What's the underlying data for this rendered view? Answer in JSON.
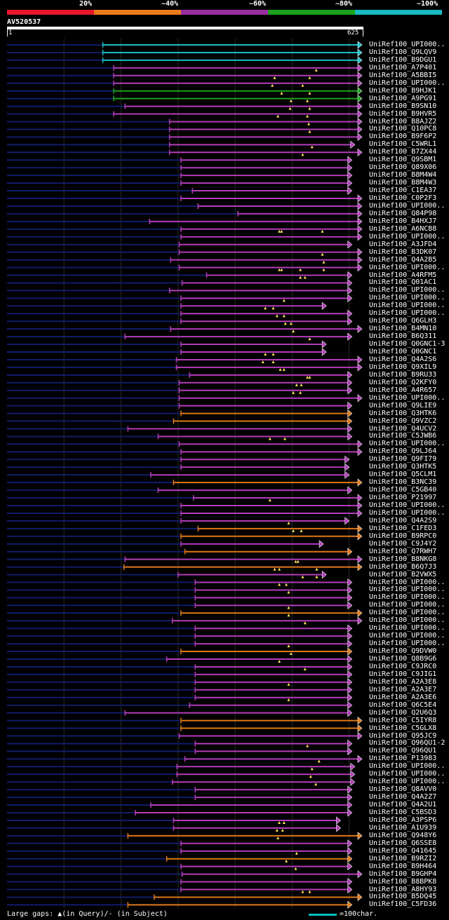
{
  "legend": {
    "labels": [
      "20%",
      "~40%",
      "~60%",
      "~80%",
      "~100%"
    ],
    "colors": [
      "#e8172c",
      "#ec7b1c",
      "#9a2ea1",
      "#1aa31a",
      "#18b9c2"
    ]
  },
  "query": {
    "name": "AV520537",
    "start": "1",
    "end": "625",
    "length": 625
  },
  "colors": {
    "cyan": "#19c0c8",
    "green": "#1aa31a",
    "magenta": "#b43cba",
    "orange": "#e07818",
    "background": "#000000",
    "queryline": "#101d6a"
  },
  "hits": [
    {
      "name": "UniRef100_UPI000..",
      "start": 168,
      "end": 655,
      "color": "cyan",
      "gaps": []
    },
    {
      "name": "UniRef100_Q9LQV9",
      "start": 168,
      "end": 655,
      "color": "cyan",
      "gaps": []
    },
    {
      "name": "UniRef100_B9DGU1",
      "start": 168,
      "end": 655,
      "color": "cyan",
      "gaps": []
    },
    {
      "name": "UniRef100_A7P401",
      "start": 187,
      "end": 655,
      "color": "magenta",
      "gaps": [
        604
      ]
    },
    {
      "name": "UniRef100_A5BBI5",
      "start": 187,
      "end": 625,
      "color": "magenta",
      "gaps": [
        515,
        590
      ]
    },
    {
      "name": "UniRef100_UPI000..",
      "start": 187,
      "end": 625,
      "color": "magenta",
      "gaps": [
        510,
        575
      ]
    },
    {
      "name": "UniRef100_B9HJK1",
      "start": 187,
      "end": 625,
      "color": "green",
      "gaps": [
        530,
        590
      ]
    },
    {
      "name": "UniRef100_A9PG91",
      "start": 187,
      "end": 625,
      "color": "green",
      "gaps": [
        550,
        585
      ]
    },
    {
      "name": "UniRef100_B9SN10",
      "start": 207,
      "end": 625,
      "color": "magenta",
      "gaps": [
        548,
        590
      ]
    },
    {
      "name": "UniRef100_B9HVR5",
      "start": 187,
      "end": 625,
      "color": "magenta",
      "gaps": [
        522,
        585
      ]
    },
    {
      "name": "UniRef100_B8AJZ2",
      "start": 285,
      "end": 630,
      "color": "magenta",
      "gaps": [
        588
      ]
    },
    {
      "name": "UniRef100_Q10PC8",
      "start": 285,
      "end": 630,
      "color": "magenta",
      "gaps": [
        590
      ]
    },
    {
      "name": "UniRef100_B9F6P2",
      "start": 285,
      "end": 630,
      "color": "magenta",
      "gaps": []
    },
    {
      "name": "UniRef100_C5WRL1",
      "start": 285,
      "end": 610,
      "color": "magenta",
      "gaps": [
        595
      ]
    },
    {
      "name": "UniRef100_B7ZX44",
      "start": 285,
      "end": 630,
      "color": "magenta",
      "gaps": [
        575
      ]
    },
    {
      "name": "UniRef100_Q9SBM1",
      "start": 305,
      "end": 605,
      "color": "magenta",
      "gaps": []
    },
    {
      "name": "UniRef100_Q89X06",
      "start": 305,
      "end": 605,
      "color": "magenta",
      "gaps": []
    },
    {
      "name": "UniRef100_B8M4W4",
      "start": 305,
      "end": 605,
      "color": "magenta",
      "gaps": []
    },
    {
      "name": "UniRef100_B8M4W3",
      "start": 305,
      "end": 605,
      "color": "magenta",
      "gaps": []
    },
    {
      "name": "UniRef100_C1EA37",
      "start": 325,
      "end": 605,
      "color": "magenta",
      "gaps": []
    },
    {
      "name": "UniRef100_C0P2F3",
      "start": 305,
      "end": 630,
      "color": "magenta",
      "gaps": []
    },
    {
      "name": "UniRef100_UPI000..",
      "start": 335,
      "end": 630,
      "color": "magenta",
      "gaps": []
    },
    {
      "name": "UniRef100_Q84P98",
      "start": 405,
      "end": 630,
      "color": "magenta",
      "gaps": []
    },
    {
      "name": "UniRef100_B4HXJ7",
      "start": 250,
      "end": 630,
      "color": "magenta",
      "gaps": []
    },
    {
      "name": "UniRef100_A6NCB8",
      "start": 305,
      "end": 630,
      "color": "magenta",
      "gaps": [
        525,
        530,
        617
      ]
    },
    {
      "name": "UniRef100_UPI000..",
      "start": 305,
      "end": 630,
      "color": "magenta",
      "gaps": []
    },
    {
      "name": "UniRef100_A3JFD4",
      "start": 302,
      "end": 605,
      "color": "magenta",
      "gaps": []
    },
    {
      "name": "UniRef100_B3DK07",
      "start": 302,
      "end": 630,
      "color": "magenta",
      "gaps": [
        617
      ]
    },
    {
      "name": "UniRef100_Q4A2B5",
      "start": 287,
      "end": 630,
      "color": "magenta",
      "gaps": [
        620
      ]
    },
    {
      "name": "UniRef100_UPI000..",
      "start": 302,
      "end": 625,
      "color": "magenta",
      "gaps": [
        525,
        530,
        570,
        620
      ]
    },
    {
      "name": "UniRef100_A4RFM5",
      "start": 350,
      "end": 605,
      "color": "magenta",
      "gaps": [
        570,
        580
      ]
    },
    {
      "name": "UniRef100_Q01AC1",
      "start": 307,
      "end": 605,
      "color": "magenta",
      "gaps": []
    },
    {
      "name": "UniRef100_UPI000..",
      "start": 285,
      "end": 605,
      "color": "magenta",
      "gaps": []
    },
    {
      "name": "UniRef100_UPI000..",
      "start": 305,
      "end": 605,
      "color": "magenta",
      "gaps": [
        535
      ]
    },
    {
      "name": "UniRef100_UPI000..",
      "start": 305,
      "end": 560,
      "color": "magenta",
      "gaps": [
        495,
        512
      ]
    },
    {
      "name": "UniRef100_UPI000..",
      "start": 305,
      "end": 605,
      "color": "magenta",
      "gaps": [
        520,
        535
      ]
    },
    {
      "name": "UniRef100_Q6GLH3",
      "start": 305,
      "end": 605,
      "color": "magenta",
      "gaps": [
        538,
        550
      ]
    },
    {
      "name": "UniRef100_B4MN10",
      "start": 287,
      "end": 625,
      "color": "magenta",
      "gaps": [
        555
      ]
    },
    {
      "name": "UniRef100_B6Q311",
      "start": 207,
      "end": 605,
      "color": "magenta",
      "gaps": [
        590
      ]
    },
    {
      "name": "UniRef100_Q0GNC1-3",
      "start": 305,
      "end": 560,
      "color": "magenta",
      "gaps": []
    },
    {
      "name": "UniRef100_Q0GNC1",
      "start": 305,
      "end": 560,
      "color": "magenta",
      "gaps": [
        495,
        512
      ]
    },
    {
      "name": "UniRef100_Q4A2S6",
      "start": 297,
      "end": 625,
      "color": "magenta",
      "gaps": [
        490,
        512
      ]
    },
    {
      "name": "UniRef100_Q9XIL9",
      "start": 297,
      "end": 625,
      "color": "magenta",
      "gaps": [
        527,
        535
      ]
    },
    {
      "name": "UniRef100_B9RU33",
      "start": 320,
      "end": 605,
      "color": "magenta",
      "gaps": [
        585,
        590
      ]
    },
    {
      "name": "UniRef100_Q2KFY0",
      "start": 302,
      "end": 605,
      "color": "magenta",
      "gaps": [
        562,
        572
      ]
    },
    {
      "name": "UniRef100_A4R657",
      "start": 302,
      "end": 605,
      "color": "magenta",
      "gaps": [
        555,
        570
      ]
    },
    {
      "name": "UniRef100_UPI000..",
      "start": 302,
      "end": 630,
      "color": "magenta",
      "gaps": []
    },
    {
      "name": "UniRef100_Q9LIE9",
      "start": 302,
      "end": 605,
      "color": "magenta",
      "gaps": []
    },
    {
      "name": "UniRef100_Q3HTK6",
      "start": 305,
      "end": 605,
      "color": "orange",
      "gaps": []
    },
    {
      "name": "UniRef100_Q9VZC2",
      "start": 292,
      "end": 605,
      "color": "orange",
      "gaps": []
    },
    {
      "name": "UniRef100_Q4UCV2",
      "start": 212,
      "end": 605,
      "color": "magenta",
      "gaps": []
    },
    {
      "name": "UniRef100_C5JWB6",
      "start": 265,
      "end": 605,
      "color": "magenta",
      "gaps": [
        505,
        537
      ]
    },
    {
      "name": "UniRef100_UPI000..",
      "start": 302,
      "end": 630,
      "color": "magenta",
      "gaps": []
    },
    {
      "name": "UniRef100_Q9LJ64",
      "start": 305,
      "end": 630,
      "color": "magenta",
      "gaps": []
    },
    {
      "name": "UniRef100_Q9FI79",
      "start": 305,
      "end": 600,
      "color": "magenta",
      "gaps": []
    },
    {
      "name": "UniRef100_Q3HTK5",
      "start": 305,
      "end": 600,
      "color": "magenta",
      "gaps": []
    },
    {
      "name": "UniRef100_Q5CLM1",
      "start": 252,
      "end": 600,
      "color": "magenta",
      "gaps": []
    },
    {
      "name": "UniRef100_B3NC39",
      "start": 292,
      "end": 630,
      "color": "orange",
      "gaps": []
    },
    {
      "name": "UniRef100_C5GB40",
      "start": 265,
      "end": 605,
      "color": "magenta",
      "gaps": []
    },
    {
      "name": "UniRef100_P21997",
      "start": 327,
      "end": 635,
      "color": "magenta",
      "gaps": [
        505
      ]
    },
    {
      "name": "UniRef100_UPI000..",
      "start": 305,
      "end": 630,
      "color": "magenta",
      "gaps": []
    },
    {
      "name": "UniRef100_UPI000..",
      "start": 305,
      "end": 630,
      "color": "magenta",
      "gaps": []
    },
    {
      "name": "UniRef100_Q4A2S9",
      "start": 305,
      "end": 600,
      "color": "magenta",
      "gaps": [
        545
      ]
    },
    {
      "name": "UniRef100_C1FED3",
      "start": 335,
      "end": 630,
      "color": "orange",
      "gaps": [
        555,
        572
      ]
    },
    {
      "name": "UniRef100_B9RPC0",
      "start": 305,
      "end": 630,
      "color": "orange",
      "gaps": []
    },
    {
      "name": "UniRef100_C9J4Y2",
      "start": 305,
      "end": 555,
      "color": "magenta",
      "gaps": []
    },
    {
      "name": "UniRef100_Q7RWH7",
      "start": 312,
      "end": 605,
      "color": "orange",
      "gaps": []
    },
    {
      "name": "UniRef100_B8NKG8",
      "start": 207,
      "end": 625,
      "color": "magenta",
      "gaps": [
        560,
        565
      ]
    },
    {
      "name": "UniRef100_B6Q7J3",
      "start": 205,
      "end": 625,
      "color": "orange",
      "gaps": [
        515,
        525,
        605
      ]
    },
    {
      "name": "UniRef100_B2VWX5",
      "start": 300,
      "end": 560,
      "color": "magenta",
      "gaps": [
        575,
        605
      ]
    },
    {
      "name": "UniRef100_UPI000..",
      "start": 330,
      "end": 605,
      "color": "magenta",
      "gaps": [
        525,
        540
      ]
    },
    {
      "name": "UniRef100_UPI000..",
      "start": 330,
      "end": 605,
      "color": "magenta",
      "gaps": [
        545
      ]
    },
    {
      "name": "UniRef100_UPI000..",
      "start": 330,
      "end": 605,
      "color": "magenta",
      "gaps": []
    },
    {
      "name": "UniRef100_UPI000..",
      "start": 330,
      "end": 605,
      "color": "magenta",
      "gaps": [
        545
      ]
    },
    {
      "name": "UniRef100_UPI000..",
      "start": 305,
      "end": 625,
      "color": "orange",
      "gaps": [
        545
      ]
    },
    {
      "name": "UniRef100_UPI000..",
      "start": 290,
      "end": 630,
      "color": "magenta",
      "gaps": [
        580
      ]
    },
    {
      "name": "UniRef100_UPI000..",
      "start": 330,
      "end": 605,
      "color": "magenta",
      "gaps": []
    },
    {
      "name": "UniRef100_UPI000..",
      "start": 330,
      "end": 605,
      "color": "magenta",
      "gaps": []
    },
    {
      "name": "UniRef100_UPI000..",
      "start": 330,
      "end": 605,
      "color": "magenta",
      "gaps": [
        545
      ]
    },
    {
      "name": "UniRef100_Q9DVW0",
      "start": 305,
      "end": 605,
      "color": "orange",
      "gaps": [
        550
      ]
    },
    {
      "name": "UniRef100_Q8B9G6",
      "start": 280,
      "end": 605,
      "color": "magenta",
      "gaps": [
        525
      ]
    },
    {
      "name": "UniRef100_C9JRC0",
      "start": 330,
      "end": 605,
      "color": "magenta",
      "gaps": [
        580
      ]
    },
    {
      "name": "UniRef100_C9JIG1",
      "start": 330,
      "end": 605,
      "color": "magenta",
      "gaps": []
    },
    {
      "name": "UniRef100_A2A3E8",
      "start": 330,
      "end": 605,
      "color": "magenta",
      "gaps": [
        545
      ]
    },
    {
      "name": "UniRef100_A2A3E7",
      "start": 330,
      "end": 605,
      "color": "magenta",
      "gaps": []
    },
    {
      "name": "UniRef100_A2A3E6",
      "start": 330,
      "end": 605,
      "color": "magenta",
      "gaps": [
        545
      ]
    },
    {
      "name": "UniRef100_Q6C5E4",
      "start": 320,
      "end": 605,
      "color": "magenta",
      "gaps": []
    },
    {
      "name": "UniRef100_Q2U6Q3",
      "start": 207,
      "end": 605,
      "color": "magenta",
      "gaps": []
    },
    {
      "name": "UniRef100_C5IYR8",
      "start": 305,
      "end": 635,
      "color": "orange",
      "gaps": []
    },
    {
      "name": "UniRef100_C5GLX8",
      "start": 305,
      "end": 635,
      "color": "orange",
      "gaps": []
    },
    {
      "name": "UniRef100_Q95JC9",
      "start": 302,
      "end": 630,
      "color": "magenta",
      "gaps": []
    },
    {
      "name": "UniRef100_Q96QU1-2",
      "start": 330,
      "end": 605,
      "color": "magenta",
      "gaps": [
        585
      ]
    },
    {
      "name": "UniRef100_Q96QU1",
      "start": 330,
      "end": 605,
      "color": "magenta",
      "gaps": []
    },
    {
      "name": "UniRef100_P13983",
      "start": 312,
      "end": 625,
      "color": "magenta",
      "gaps": [
        610
      ]
    },
    {
      "name": "UniRef100_UPI000..",
      "start": 298,
      "end": 610,
      "color": "magenta",
      "gaps": [
        595
      ]
    },
    {
      "name": "UniRef100_UPI000..",
      "start": 298,
      "end": 610,
      "color": "magenta",
      "gaps": [
        592
      ]
    },
    {
      "name": "UniRef100_UPI000..",
      "start": 290,
      "end": 610,
      "color": "magenta",
      "gaps": [
        603
      ]
    },
    {
      "name": "UniRef100_Q8AVV0",
      "start": 330,
      "end": 605,
      "color": "magenta",
      "gaps": []
    },
    {
      "name": "UniRef100_Q4A2Z7",
      "start": 330,
      "end": 605,
      "color": "magenta",
      "gaps": []
    },
    {
      "name": "UniRef100_Q4A2U1",
      "start": 252,
      "end": 605,
      "color": "magenta",
      "gaps": []
    },
    {
      "name": "UniRef100_C5BSD3",
      "start": 225,
      "end": 605,
      "color": "magenta",
      "gaps": []
    },
    {
      "name": "UniRef100_A3PSP6",
      "start": 292,
      "end": 585,
      "color": "magenta",
      "gaps": [
        525,
        535
      ]
    },
    {
      "name": "UniRef100_A1U939",
      "start": 292,
      "end": 585,
      "color": "magenta",
      "gaps": [
        520,
        532
      ]
    },
    {
      "name": "UniRef100_Q948Y6",
      "start": 212,
      "end": 630,
      "color": "orange",
      "gaps": [
        522
      ]
    },
    {
      "name": "UniRef100_Q6SSE8",
      "start": 305,
      "end": 605,
      "color": "magenta",
      "gaps": []
    },
    {
      "name": "UniRef100_Q41645",
      "start": 305,
      "end": 605,
      "color": "magenta",
      "gaps": [
        562
      ]
    },
    {
      "name": "UniRef100_B9RZI2",
      "start": 280,
      "end": 605,
      "color": "orange",
      "gaps": [
        540
      ]
    },
    {
      "name": "UniRef100_B9H464",
      "start": 305,
      "end": 605,
      "color": "magenta",
      "gaps": [
        560
      ]
    },
    {
      "name": "UniRef100_B9GHP4",
      "start": 307,
      "end": 630,
      "color": "magenta",
      "gaps": []
    },
    {
      "name": "UniRef100_B8BPK8",
      "start": 305,
      "end": 605,
      "color": "magenta",
      "gaps": []
    },
    {
      "name": "UniRef100_A8HY93",
      "start": 305,
      "end": 605,
      "color": "magenta",
      "gaps": [
        575,
        590
      ]
    },
    {
      "name": "UniRef100_B5DQ45",
      "start": 258,
      "end": 630,
      "color": "orange",
      "gaps": []
    },
    {
      "name": "UniRef100_C5FD36",
      "start": 212,
      "end": 605,
      "color": "orange",
      "gaps": []
    }
  ],
  "footer": {
    "text": "Large gaps: ▲(in Query)/- (in Subject)",
    "scale": "=100char."
  }
}
